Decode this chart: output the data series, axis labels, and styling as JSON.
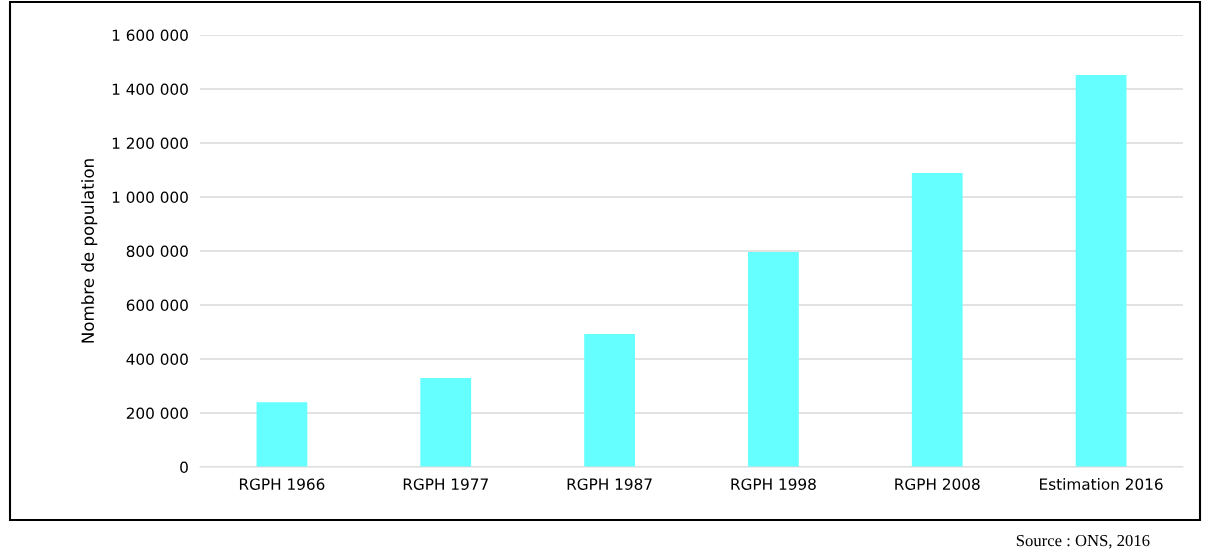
{
  "chart_data": {
    "type": "bar",
    "ylabel": "Nombre de population",
    "categories": [
      "RGPH 1966",
      "RGPH 1977",
      "RGPH 1987",
      "RGPH 1998",
      "RGPH 2008",
      "Estimation 2016"
    ],
    "values": [
      240000,
      330000,
      493000,
      796000,
      1089000,
      1452000
    ],
    "color": "#66ffff",
    "ylim": [
      0,
      1600000
    ],
    "yticks": [
      {
        "value": 0,
        "label": "0"
      },
      {
        "value": 200000,
        "label": "200 000"
      },
      {
        "value": 400000,
        "label": "400 000"
      },
      {
        "value": 600000,
        "label": "600 000"
      },
      {
        "value": 800000,
        "label": "800 000"
      },
      {
        "value": 1000000,
        "label": "1 000 000"
      },
      {
        "value": 1200000,
        "label": "1 200 000"
      },
      {
        "value": 1400000,
        "label": "1 400 000"
      },
      {
        "value": 1600000,
        "label": "1 600 000"
      }
    ],
    "grid": "y",
    "annotations": [
      "Source : ONS, 2016"
    ]
  }
}
